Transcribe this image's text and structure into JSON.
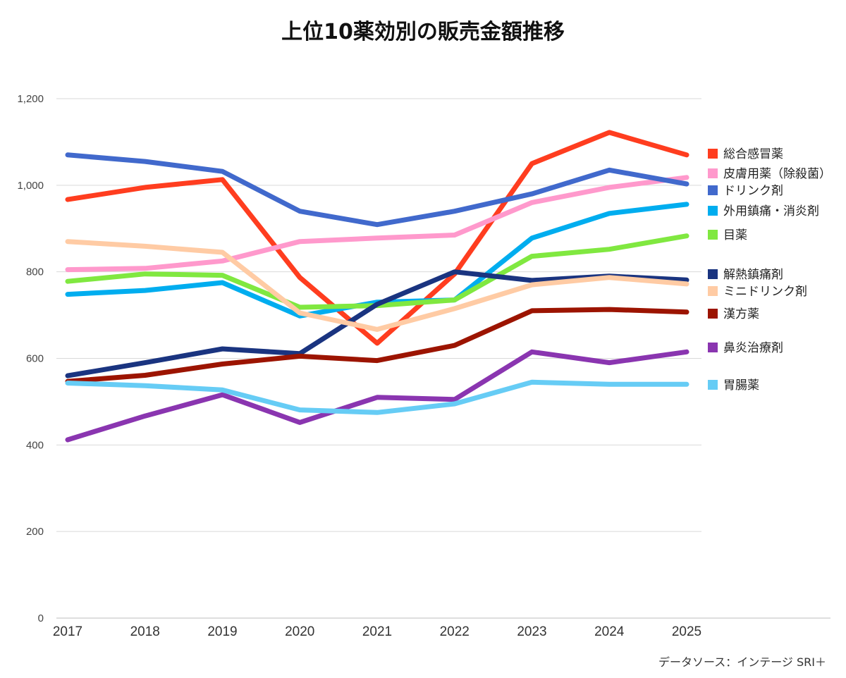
{
  "chart_data": {
    "type": "line",
    "title": "上位10薬効別の販売金額推移",
    "xlabel": "",
    "ylabel": "",
    "ylim": [
      0,
      1200
    ],
    "yticks": [
      "0",
      "200",
      "400",
      "600",
      "800",
      "1,000",
      "1,200"
    ],
    "ytick_values": [
      0,
      200,
      400,
      600,
      800,
      1000,
      1200
    ],
    "x": [
      "2017",
      "2018",
      "2019",
      "2020",
      "2021",
      "2022",
      "2023",
      "2024",
      "2025"
    ],
    "grid": true,
    "legend_position": "right",
    "source": "データソース：インテージ SRI＋",
    "series": [
      {
        "name": "総合感冒薬",
        "color": "#ff3d1f",
        "values": [
          967,
          995,
          1013,
          787,
          635,
          795,
          1050,
          1122,
          1070
        ]
      },
      {
        "name": "皮膚用薬（除殺菌）",
        "color": "#ff99cc",
        "values": [
          805,
          808,
          825,
          870,
          878,
          885,
          960,
          995,
          1018
        ]
      },
      {
        "name": "ドリンク剤",
        "color": "#4169cc",
        "values": [
          1070,
          1055,
          1032,
          940,
          909,
          940,
          980,
          1035,
          1003
        ]
      },
      {
        "name": "外用鎮痛・消炎剤",
        "color": "#00adef",
        "values": [
          748,
          757,
          775,
          698,
          730,
          735,
          878,
          935,
          956
        ]
      },
      {
        "name": "目薬",
        "color": "#80e840",
        "values": [
          778,
          795,
          792,
          718,
          722,
          735,
          836,
          852,
          883
        ]
      },
      {
        "name": "解熱鎮痛剤",
        "color": "#1a3480",
        "values": [
          560,
          590,
          622,
          611,
          725,
          800,
          780,
          790,
          781
        ]
      },
      {
        "name": "ミニドリンク剤",
        "color": "#ffcba4",
        "values": [
          870,
          859,
          845,
          705,
          667,
          715,
          770,
          787,
          772
        ]
      },
      {
        "name": "漢方薬",
        "color": "#9c1400",
        "values": [
          547,
          561,
          587,
          605,
          595,
          630,
          710,
          713,
          707
        ]
      },
      {
        "name": "鼻炎治療剤",
        "color": "#8a35b0",
        "values": [
          412,
          467,
          516,
          452,
          510,
          505,
          615,
          590,
          615
        ]
      },
      {
        "name": "胃腸薬",
        "color": "#66ccf5",
        "values": [
          543,
          537,
          527,
          481,
          475,
          495,
          545,
          540,
          540
        ]
      }
    ]
  }
}
